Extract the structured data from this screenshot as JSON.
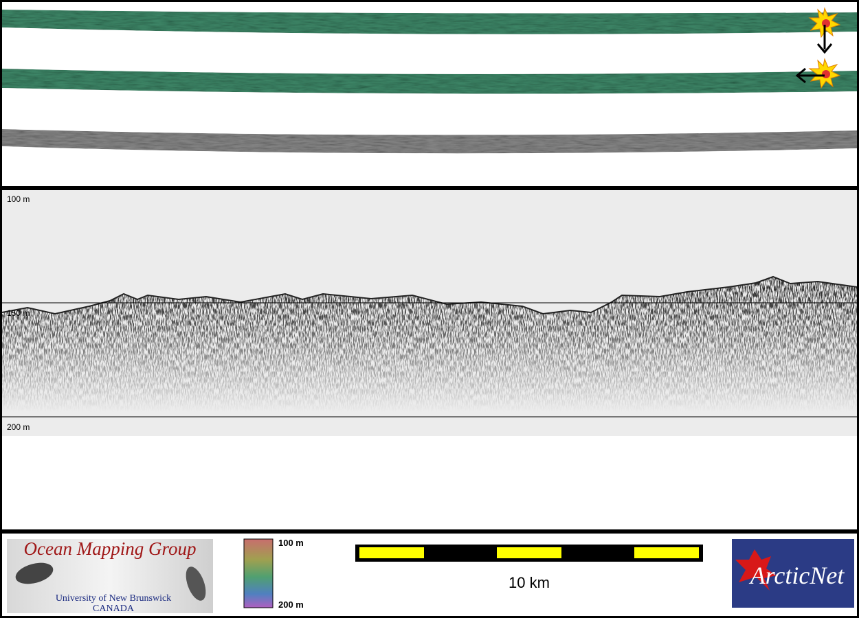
{
  "profile": {
    "depth_labels": [
      "100 m",
      "150 m",
      "200 m"
    ]
  },
  "legend": {
    "labels": [
      "100 m",
      "200 m"
    ]
  },
  "scale_bar": {
    "label": "10 km"
  },
  "logos": {
    "omg": {
      "title": "Ocean Mapping Group",
      "university": "University of New Brunswick",
      "country": "CANADA"
    },
    "arcticnet": "ArcticNet"
  }
}
